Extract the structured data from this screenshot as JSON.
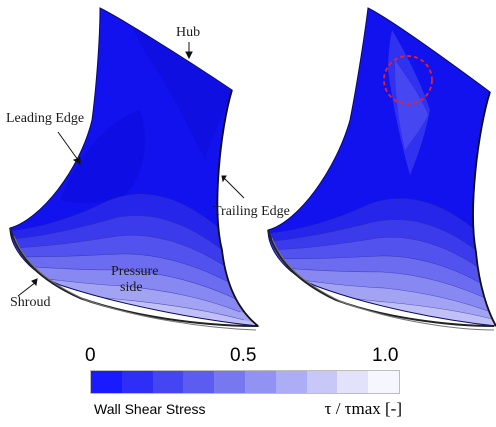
{
  "annotations": {
    "hub": "Hub",
    "leading_edge": "Leading Edge",
    "trailing_edge": "Trailing Edge",
    "pressure_side_line1": "Pressure",
    "pressure_side_line2": "side",
    "shroud": "Shroud"
  },
  "colorbar": {
    "ticks": [
      "0",
      "0.5",
      "1.0"
    ],
    "title": "Wall Shear Stress",
    "unit_label": "τ / τmax [-]",
    "colors": [
      "#1a1aff",
      "#2e2ef7",
      "#4545f2",
      "#5c5cf0",
      "#7777f0",
      "#9292f2",
      "#adadf5",
      "#c8c8f8",
      "#e2e2fb",
      "#f6f6ff"
    ]
  },
  "highlight": {
    "color": "#e8202a"
  }
}
